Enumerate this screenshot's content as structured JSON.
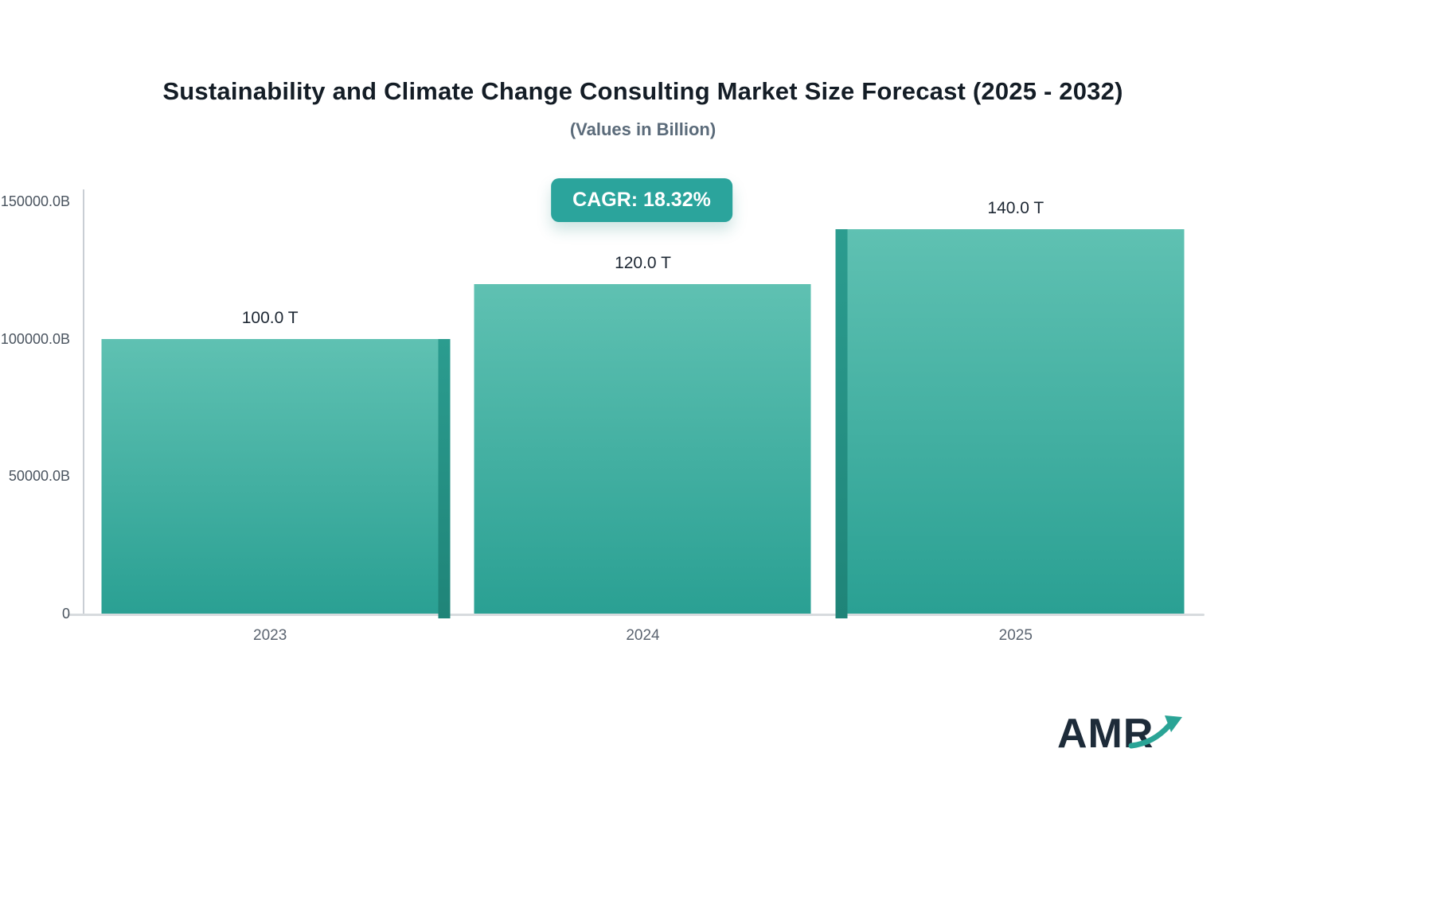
{
  "title": "Sustainability and Climate Change Consulting Market Size Forecast (2025 - 2032)",
  "subtitle": "(Values in Billion)",
  "badge": {
    "label": "CAGR: 18.32%"
  },
  "logo": {
    "text": "AMR"
  },
  "chart_data": {
    "type": "bar",
    "categories": [
      "2023",
      "2024",
      "2025"
    ],
    "values": [
      100000,
      120000,
      140000
    ],
    "value_labels": [
      "100.0 T",
      "120.0 T",
      "140.0 T"
    ],
    "title": "Sustainability and Climate Change Consulting Market Size Forecast (2025 - 2032)",
    "subtitle": "(Values in Billion)",
    "xlabel": "",
    "ylabel": "",
    "ylim": [
      0,
      150000
    ],
    "yticks": [
      {
        "value": 0,
        "label": "0"
      },
      {
        "value": 50000,
        "label": "50000.0B"
      },
      {
        "value": 100000,
        "label": "100000.0B"
      },
      {
        "value": 150000,
        "label": "150000.0B"
      }
    ],
    "grid": false,
    "legend": "none",
    "colors": {
      "bar_top": "#5fc1b2",
      "bar_bottom": "#2aa093",
      "bar_side": "#1f8478",
      "badge_background": "#2ba49c",
      "badge_text": "#ffffff",
      "arrow": "#2aa496"
    }
  }
}
